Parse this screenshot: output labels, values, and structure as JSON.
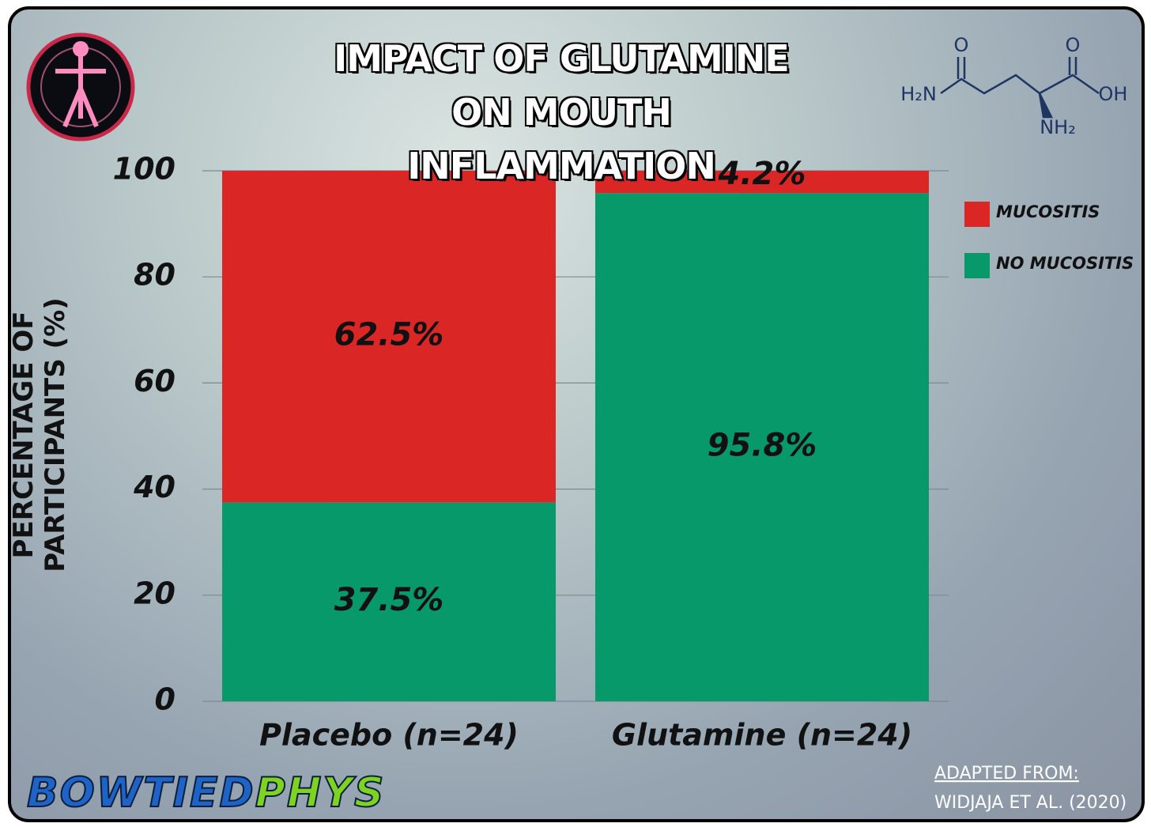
{
  "chart_data": {
    "type": "stacked_bar",
    "title": "IMPACT OF GLUTAMINE ON MOUTH INFLAMMATION",
    "y_label": "PERCENTAGE OF PARTICIPANTS (%)",
    "categories": [
      "Placebo (n=24)",
      "Glutamine (n=24)"
    ],
    "series": [
      {
        "name": "NO MUCOSITIS",
        "color": "#07996a",
        "values": [
          37.5,
          95.8
        ],
        "value_labels": [
          "37.5%",
          "95.8%"
        ]
      },
      {
        "name": "MUCOSITIS",
        "color": "#db2626",
        "values": [
          62.5,
          4.2
        ],
        "value_labels": [
          "62.5%",
          "4.2%"
        ]
      }
    ],
    "ylim": [
      0,
      100
    ],
    "yticks": [
      0,
      20,
      40,
      60,
      80,
      100
    ],
    "grid": true,
    "legend": "right",
    "source": [
      "ADAPTED FROM:",
      "WIDJAJA ET AL. (2020)"
    ],
    "brand": [
      "BOWTIED",
      "PHYS"
    ]
  },
  "molecule_labels": [
    "O",
    "O",
    "H₂N",
    "OH",
    "NH₂"
  ]
}
